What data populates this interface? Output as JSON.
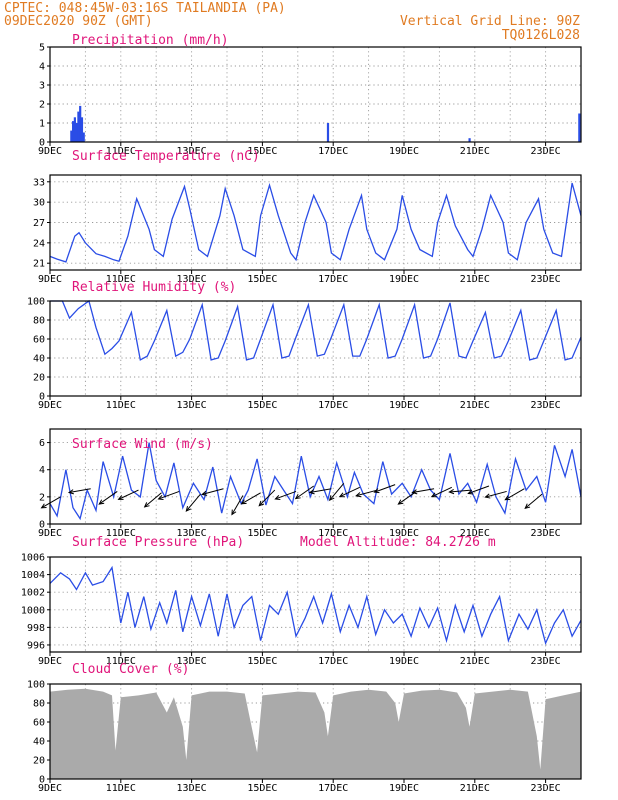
{
  "header": {
    "station": "CPTEC:  048:45W-03:16S  TAILANDIA (PA)",
    "date": "09DEC2020 90Z (GMT)",
    "grid_note": "Vertical Grid Line: 90Z",
    "code": "TQ0126L028"
  },
  "colors": {
    "header": "#e07b22",
    "title": "#e0157a",
    "line": "#2a4de6",
    "cloud": "#aaaaaa",
    "arrow": "#000000"
  },
  "x_axis": {
    "start": "09DEC",
    "end": "24DEC",
    "tick_labels": [
      "9DEC",
      "11DEC",
      "13DEC",
      "15DEC",
      "17DEC",
      "19DEC",
      "21DEC",
      "23DEC"
    ],
    "tick_days": [
      0,
      2,
      4,
      6,
      8,
      10,
      12,
      14
    ]
  },
  "chart_data": [
    {
      "id": "precipitation",
      "type": "bar",
      "title": "Precipitation (mm/h)",
      "ylim": [
        0,
        5
      ],
      "yticks": [
        0,
        1,
        2,
        3,
        4,
        5
      ],
      "ytick_labels": [
        "0",
        "1",
        "2",
        "3",
        "4",
        "5"
      ],
      "bars_x_days": [
        0.6,
        0.65,
        0.7,
        0.75,
        0.8,
        0.85,
        0.9,
        0.95,
        7.85,
        11.85,
        14.95
      ],
      "bars_values": [
        0.6,
        1.1,
        1.3,
        1.0,
        1.6,
        1.9,
        1.3,
        0.5,
        1.0,
        0.2,
        1.5
      ]
    },
    {
      "id": "temperature",
      "type": "line",
      "title": "Surface Temperature (nC)",
      "ylim": [
        20,
        34
      ],
      "yticks": [
        21,
        24,
        27,
        30,
        33
      ],
      "ytick_labels": [
        "21",
        "24",
        "27",
        "30",
        "33"
      ],
      "x_days": [
        0,
        0.2,
        0.45,
        0.7,
        0.82,
        1.0,
        1.15,
        1.3,
        1.55,
        1.8,
        1.95,
        2.2,
        2.45,
        2.8,
        2.95,
        3.2,
        3.45,
        3.8,
        3.95,
        4.2,
        4.45,
        4.8,
        4.95,
        5.2,
        5.45,
        5.8,
        5.95,
        6.2,
        6.45,
        6.8,
        6.95,
        7.2,
        7.45,
        7.8,
        7.95,
        8.2,
        8.45,
        8.8,
        8.95,
        9.2,
        9.45,
        9.8,
        9.95,
        10.2,
        10.45,
        10.8,
        10.95,
        11.2,
        11.45,
        11.8,
        11.95,
        12.2,
        12.45,
        12.8,
        12.95,
        13.2,
        13.45,
        13.8,
        13.95,
        14.2,
        14.45,
        14.75,
        15
      ],
      "y": [
        22,
        21.6,
        21.2,
        25,
        25.5,
        24,
        23.2,
        22.4,
        22,
        21.5,
        21.3,
        25,
        30.5,
        26,
        23,
        22,
        27.5,
        32.3,
        29,
        23,
        22,
        28,
        32,
        28,
        23,
        22,
        28,
        32.5,
        28,
        22.5,
        21.5,
        27,
        31,
        27,
        22.5,
        21.5,
        26,
        31,
        26,
        22.5,
        21.5,
        26,
        31,
        26,
        23,
        22,
        27,
        31,
        26.5,
        23,
        22,
        26,
        31,
        27,
        22.5,
        21.5,
        27,
        30.5,
        26,
        22.5,
        22,
        32.8,
        28
      ]
    },
    {
      "id": "humidity",
      "type": "line",
      "title": "Relative Humidity (%)",
      "ylim": [
        0,
        100
      ],
      "yticks": [
        0,
        20,
        40,
        60,
        80,
        100
      ],
      "ytick_labels": [
        "0",
        "20",
        "40",
        "60",
        "80",
        "100"
      ],
      "x_days": [
        0,
        0.35,
        0.55,
        0.8,
        1.1,
        1.3,
        1.55,
        1.75,
        1.95,
        2.3,
        2.55,
        2.75,
        2.95,
        3.3,
        3.55,
        3.75,
        3.95,
        4.3,
        4.55,
        4.75,
        4.95,
        5.3,
        5.55,
        5.75,
        5.95,
        6.3,
        6.55,
        6.75,
        6.95,
        7.3,
        7.55,
        7.75,
        7.95,
        8.3,
        8.55,
        8.75,
        8.95,
        9.3,
        9.55,
        9.75,
        9.95,
        10.3,
        10.55,
        10.75,
        10.95,
        11.3,
        11.55,
        11.75,
        11.95,
        12.3,
        12.55,
        12.75,
        12.95,
        13.3,
        13.55,
        13.75,
        13.95,
        14.3,
        14.55,
        14.75,
        15
      ],
      "y": [
        100,
        100,
        82,
        92,
        100,
        72,
        44,
        50,
        58,
        88,
        38,
        42,
        58,
        90,
        42,
        46,
        60,
        96,
        38,
        40,
        58,
        94,
        38,
        40,
        60,
        96,
        40,
        42,
        62,
        96,
        42,
        44,
        62,
        96,
        42,
        42,
        60,
        96,
        40,
        42,
        60,
        96,
        40,
        42,
        60,
        98,
        42,
        40,
        58,
        88,
        40,
        42,
        58,
        90,
        38,
        40,
        58,
        90,
        38,
        40,
        62
      ]
    },
    {
      "id": "wind",
      "type": "line",
      "title": "Surface Wind (m/s)",
      "ylim": [
        0,
        7
      ],
      "yticks": [
        0,
        2,
        4,
        6
      ],
      "ytick_labels": [
        "0",
        "2",
        "4",
        "6"
      ],
      "x_days": [
        0,
        0.2,
        0.45,
        0.65,
        0.85,
        1.05,
        1.3,
        1.5,
        1.8,
        2.05,
        2.3,
        2.55,
        2.8,
        3.0,
        3.25,
        3.5,
        3.75,
        4.05,
        4.35,
        4.6,
        4.85,
        5.1,
        5.4,
        5.6,
        5.85,
        6.1,
        6.35,
        6.6,
        6.85,
        7.1,
        7.35,
        7.6,
        7.85,
        8.1,
        8.4,
        8.6,
        8.85,
        9.15,
        9.4,
        9.65,
        9.95,
        10.2,
        10.5,
        10.75,
        11.0,
        11.3,
        11.55,
        11.8,
        12.05,
        12.35,
        12.6,
        12.85,
        13.15,
        13.45,
        13.75,
        14.0,
        14.25,
        14.55,
        14.75,
        15
      ],
      "y": [
        1.5,
        0.6,
        4.0,
        1.2,
        0.4,
        2.5,
        1.0,
        4.6,
        2.0,
        5.0,
        2.5,
        2.0,
        6.0,
        3.2,
        2.0,
        4.5,
        1.2,
        3.0,
        1.8,
        4.2,
        0.8,
        3.5,
        1.5,
        2.5,
        4.8,
        1.4,
        3.5,
        2.5,
        1.5,
        5.0,
        2.0,
        3.5,
        1.8,
        4.5,
        2.0,
        3.8,
        2.2,
        1.5,
        4.6,
        2.2,
        3.0,
        2.0,
        4.0,
        2.5,
        1.8,
        5.2,
        2.2,
        3.0,
        1.6,
        4.4,
        2.0,
        0.8,
        4.8,
        2.5,
        3.5,
        1.6,
        5.8,
        3.5,
        5.5,
        2.0
      ],
      "arrows_x_days": [
        0.3,
        1.15,
        1.9,
        2.5,
        3.15,
        3.65,
        4.25,
        4.9,
        5.45,
        5.95,
        6.35,
        6.95,
        7.45,
        7.95,
        8.3,
        8.75,
        9.25,
        9.75,
        10.35,
        10.85,
        11.35,
        11.9,
        12.4,
        12.9,
        13.4,
        13.9
      ],
      "arrows_speed": [
        2.0,
        2.6,
        2.4,
        2.5,
        2.3,
        2.4,
        2.2,
        2.6,
        2.1,
        2.3,
        2.5,
        2.4,
        2.8,
        2.6,
        3.0,
        2.7,
        2.5,
        2.9,
        2.4,
        2.6,
        2.7,
        2.5,
        2.8,
        2.4,
        2.6,
        2.2
      ],
      "arrows_angle_deg": [
        210,
        190,
        215,
        205,
        220,
        200,
        230,
        195,
        240,
        210,
        225,
        200,
        215,
        190,
        230,
        205,
        195,
        200,
        215,
        190,
        205,
        185,
        200,
        195,
        210,
        220
      ]
    },
    {
      "id": "pressure",
      "type": "line",
      "title": "Surface Pressure (hPa)",
      "annotation": "Model Altitude: 84.2726 m",
      "ylim": [
        995.2,
        1006
      ],
      "yticks": [
        996,
        998,
        1000,
        1002,
        1004,
        1006
      ],
      "ytick_labels": [
        "996",
        "998",
        "1000",
        "1002",
        "1004",
        "1006"
      ],
      "x_days": [
        0,
        0.3,
        0.55,
        0.75,
        1.0,
        1.2,
        1.5,
        1.75,
        2.0,
        2.2,
        2.4,
        2.65,
        2.85,
        3.1,
        3.3,
        3.55,
        3.75,
        4.0,
        4.25,
        4.5,
        4.75,
        5.0,
        5.2,
        5.45,
        5.7,
        5.95,
        6.2,
        6.45,
        6.7,
        6.95,
        7.2,
        7.45,
        7.7,
        7.95,
        8.2,
        8.45,
        8.7,
        8.95,
        9.2,
        9.45,
        9.7,
        9.95,
        10.2,
        10.45,
        10.7,
        10.95,
        11.2,
        11.45,
        11.7,
        11.95,
        12.2,
        12.45,
        12.7,
        12.95,
        13.25,
        13.5,
        13.75,
        14.0,
        14.25,
        14.5,
        14.75,
        15
      ],
      "y": [
        1003.0,
        1004.2,
        1003.5,
        1002.3,
        1004.2,
        1002.8,
        1003.2,
        1004.8,
        998.5,
        1002.0,
        998.0,
        1001.5,
        997.8,
        1000.8,
        998.5,
        1002.2,
        997.5,
        1001.5,
        998.2,
        1001.8,
        997.0,
        1001.8,
        998.0,
        1000.5,
        1001.5,
        996.5,
        1000.5,
        999.5,
        1002.0,
        997.0,
        999.0,
        1001.5,
        998.5,
        1001.8,
        997.5,
        1000.5,
        998.0,
        1001.5,
        997.2,
        1000.0,
        998.5,
        999.5,
        997.0,
        1000.2,
        998.0,
        1000.2,
        996.5,
        1000.5,
        997.5,
        1000.5,
        997.0,
        999.5,
        1001.5,
        996.5,
        999.5,
        997.8,
        1000.0,
        996.2,
        998.5,
        1000.0,
        997.0,
        998.8
      ]
    },
    {
      "id": "cloud",
      "type": "area",
      "title": "Cloud Cover (%)",
      "ylim": [
        0,
        100
      ],
      "yticks": [
        0,
        20,
        40,
        60,
        80,
        100
      ],
      "ytick_labels": [
        "0",
        "20",
        "40",
        "60",
        "80",
        "100"
      ],
      "x_days": [
        0,
        0.5,
        1.0,
        1.5,
        1.75,
        1.85,
        2.0,
        2.5,
        3.0,
        3.3,
        3.5,
        3.75,
        3.85,
        4.0,
        4.5,
        5.0,
        5.5,
        5.75,
        5.85,
        6.0,
        6.5,
        7.0,
        7.5,
        7.75,
        7.85,
        8.0,
        8.5,
        9.0,
        9.5,
        9.75,
        9.85,
        10.0,
        10.5,
        11.0,
        11.5,
        11.75,
        11.85,
        12.0,
        12.5,
        13.0,
        13.5,
        13.75,
        13.85,
        14.0,
        14.5,
        15
      ],
      "y": [
        92,
        94,
        95,
        92,
        88,
        30,
        86,
        88,
        91,
        70,
        86,
        55,
        20,
        88,
        92,
        92,
        90,
        45,
        28,
        88,
        90,
        92,
        91,
        70,
        45,
        88,
        92,
        94,
        92,
        80,
        60,
        90,
        93,
        94,
        91,
        75,
        55,
        90,
        92,
        94,
        92,
        45,
        10,
        84,
        88,
        92
      ]
    }
  ]
}
